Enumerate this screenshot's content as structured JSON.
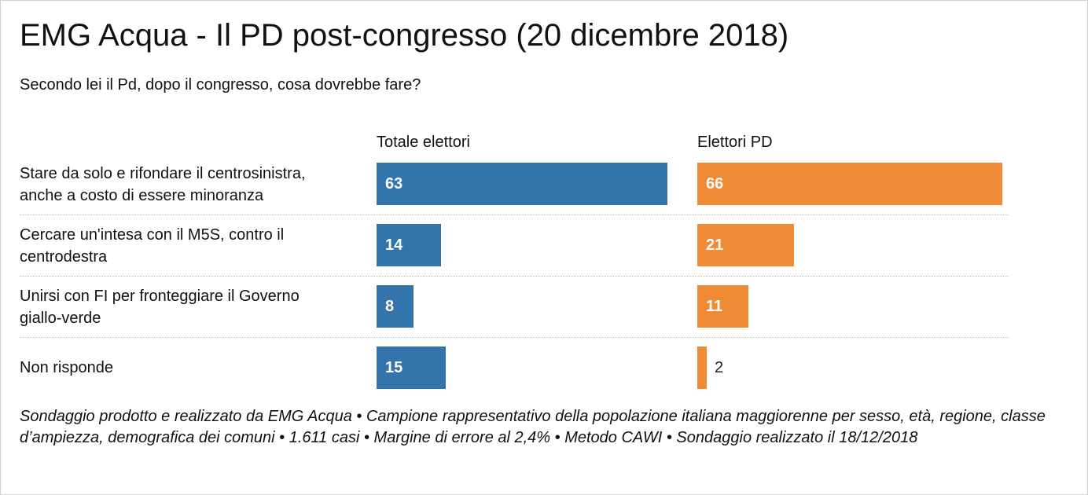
{
  "title": "EMG Acqua - Il PD post-congresso (20 dicembre 2018)",
  "subtitle": "Secondo lei il Pd, dopo il congresso, cosa dovrebbe fare?",
  "colors": {
    "totale": "#3474ad",
    "pd": "#ef8a35"
  },
  "chart_data": {
    "type": "bar",
    "orientation": "horizontal",
    "categories": [
      [
        "Stare da solo e rifondare il centrosinistra,",
        "anche a costo di essere minoranza"
      ],
      [
        "Cercare un'intesa con il M5S, contro il",
        "centrodestra"
      ],
      [
        "Unirsi con FI per fronteggiare il Governo",
        "giallo-verde"
      ],
      [
        "Non risponde"
      ]
    ],
    "series": [
      {
        "name": "Totale elettori",
        "values": [
          63,
          14,
          8,
          15
        ]
      },
      {
        "name": "Elettori PD",
        "values": [
          66,
          21,
          11,
          2
        ]
      }
    ],
    "xlim": [
      0,
      66
    ],
    "grid": false,
    "legend": "column headers"
  },
  "footnote": "Sondaggio prodotto e realizzato da EMG Acqua • Campione rappresentativo della popolazione italiana maggiorenne per sesso, età, regione, classe d’ampiezza, demografica dei comuni • 1.611 casi • Margine di errore al 2,4% • Metodo CAWI • Sondaggio realizzato il 18/12/2018"
}
